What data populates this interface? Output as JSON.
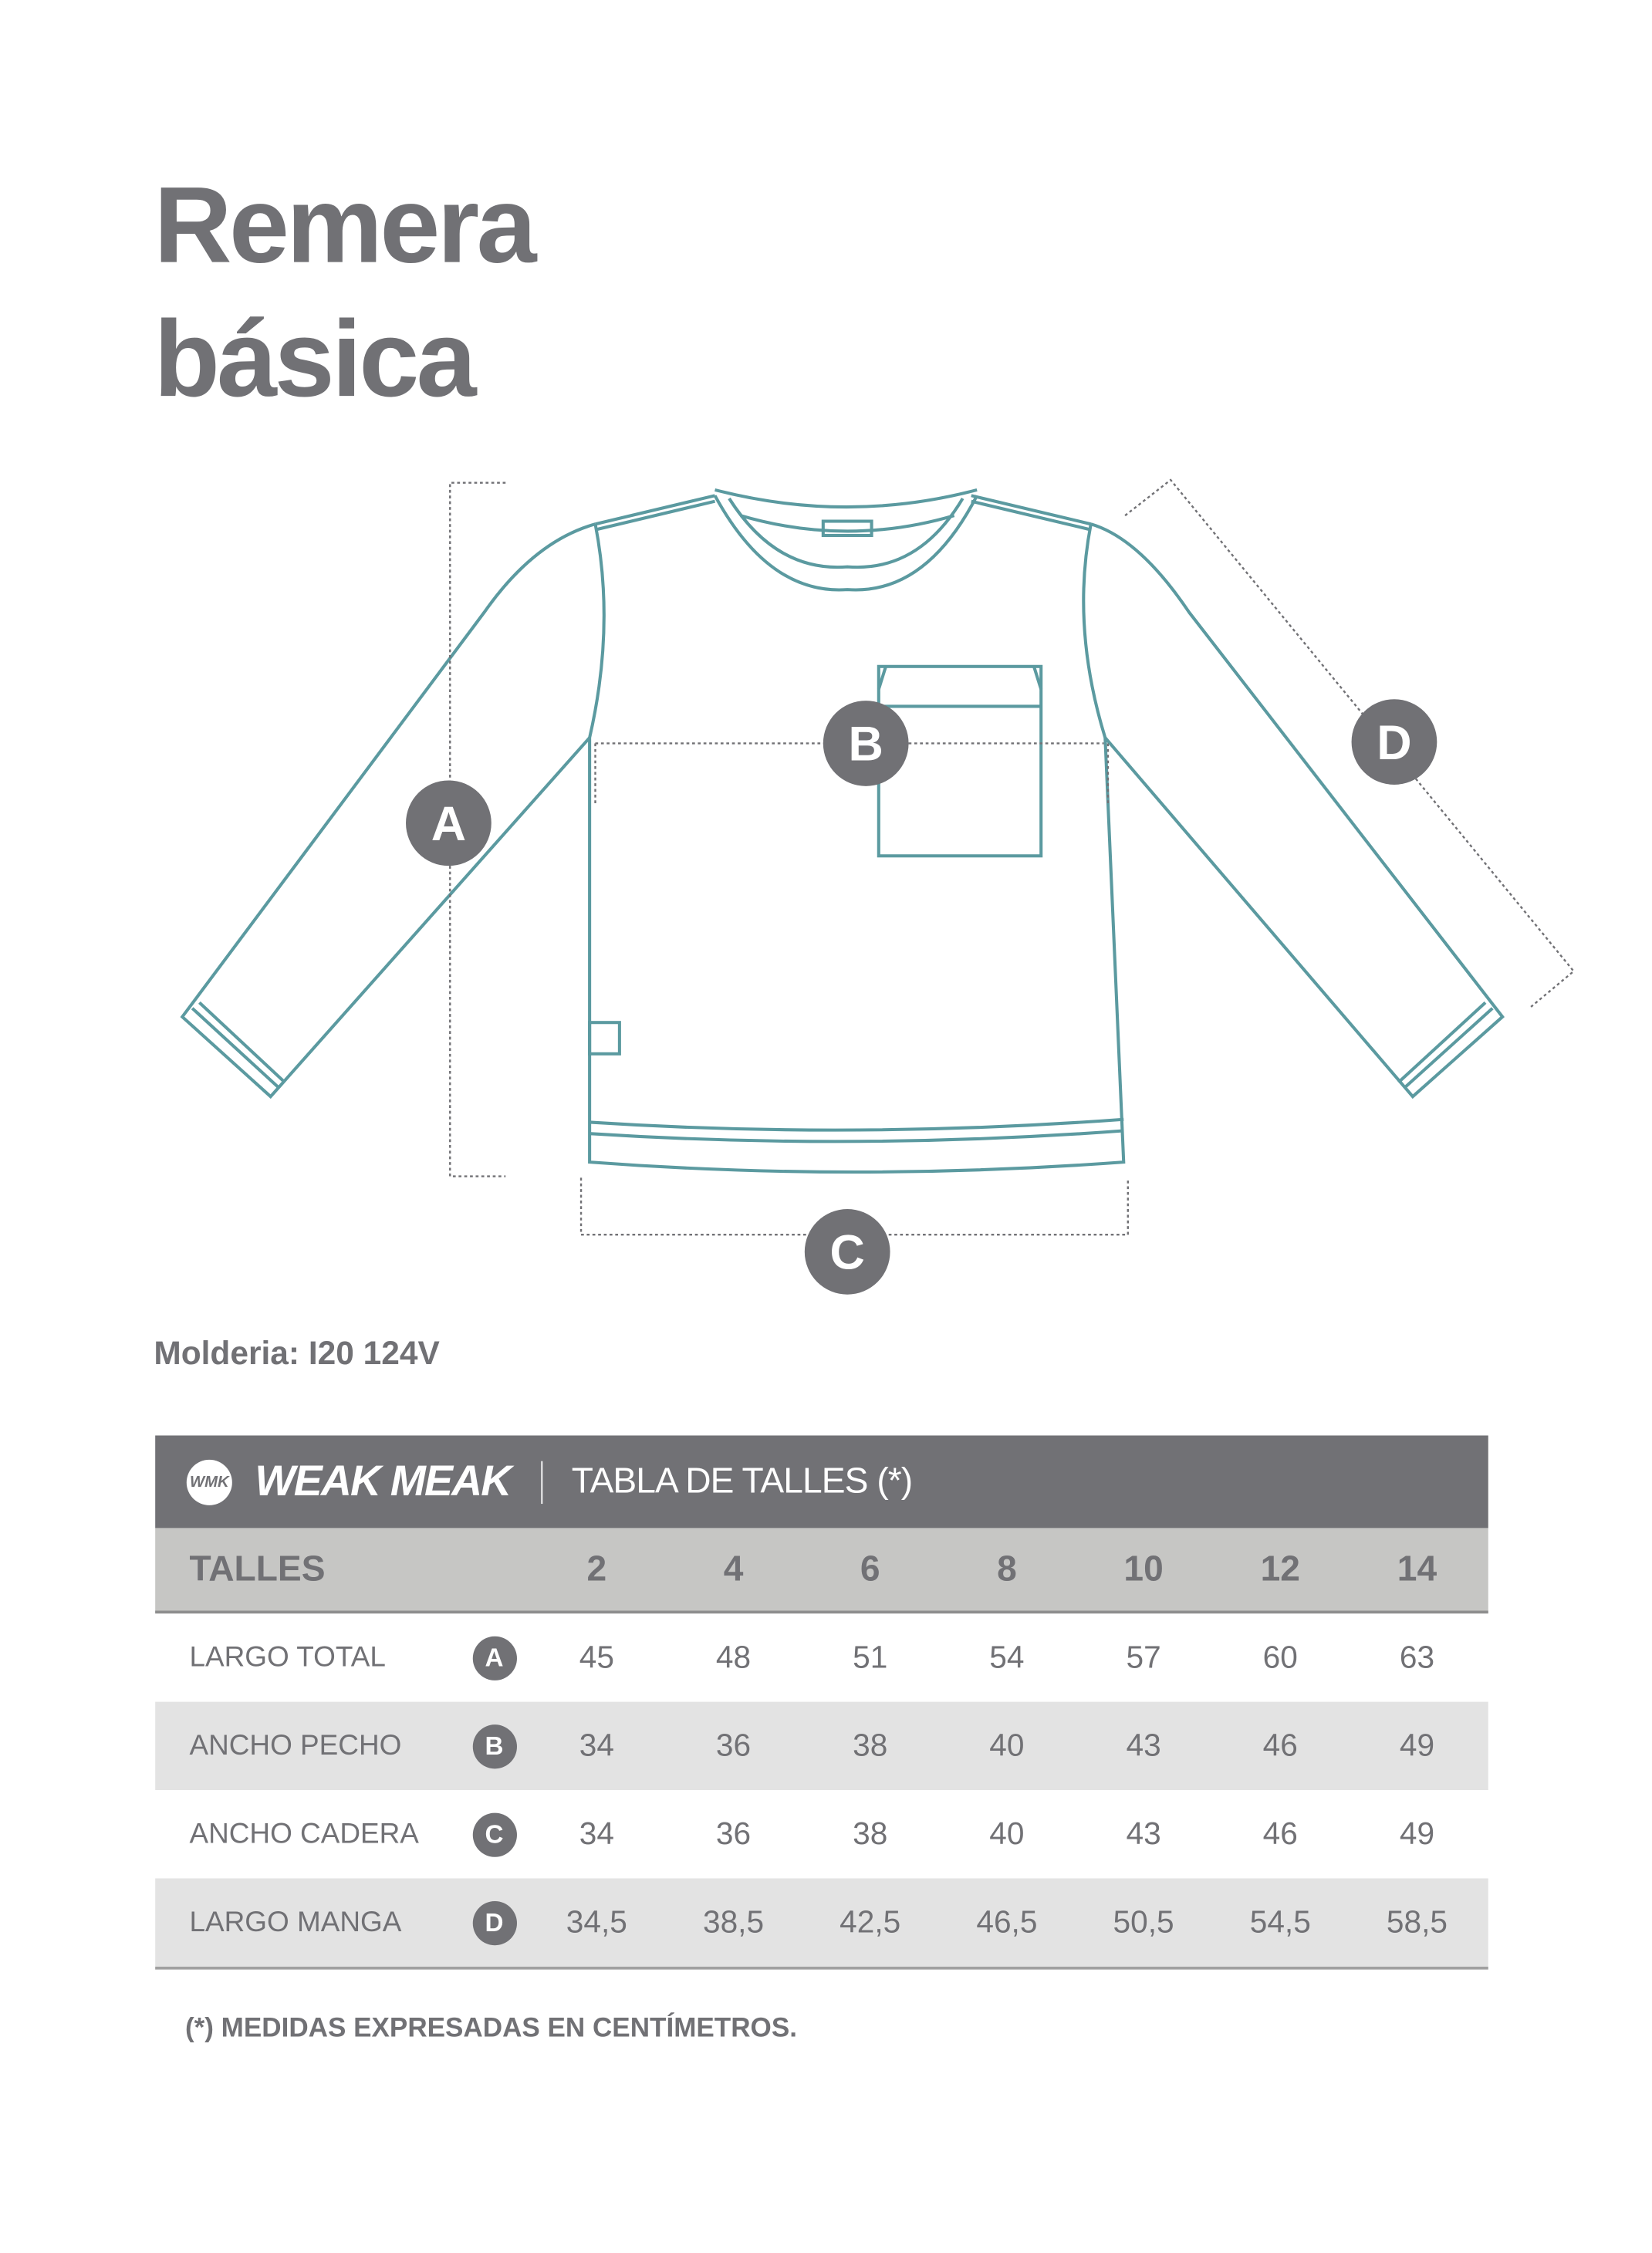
{
  "title": {
    "line1": "Remera",
    "line2": "básica"
  },
  "diagram": {
    "markers": [
      "A",
      "B",
      "C",
      "D"
    ],
    "line_color": "#5b9aa0",
    "marker_color": "#717175"
  },
  "molderia": "Molderia: I20 124V",
  "table": {
    "brand": "WEAK MEAK",
    "brand_mark": "WMK",
    "title": "TABLA DE TALLES (*)",
    "header_label": "TALLES",
    "sizes": [
      "2",
      "4",
      "6",
      "8",
      "10",
      "12",
      "14"
    ],
    "rows": [
      {
        "label": "LARGO TOTAL",
        "marker": "A",
        "values": [
          "45",
          "48",
          "51",
          "54",
          "57",
          "60",
          "63"
        ]
      },
      {
        "label": "ANCHO PECHO",
        "marker": "B",
        "values": [
          "34",
          "36",
          "38",
          "40",
          "43",
          "46",
          "49"
        ]
      },
      {
        "label": "ANCHO CADERA",
        "marker": "C",
        "values": [
          "34",
          "36",
          "38",
          "40",
          "43",
          "46",
          "49"
        ]
      },
      {
        "label": "LARGO MANGA",
        "marker": "D",
        "values": [
          "34,5",
          "38,5",
          "42,5",
          "46,5",
          "50,5",
          "54,5",
          "58,5"
        ]
      }
    ],
    "colors": {
      "header": "#717175",
      "subheader": "#c6c6c4",
      "shade": "#e3e3e3"
    }
  },
  "note": "(*) MEDIDAS EXPRESADAS EN CENTÍMETROS."
}
